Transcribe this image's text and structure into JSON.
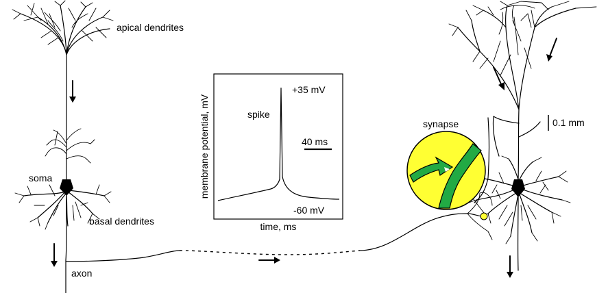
{
  "labels": {
    "apical_dendrites": "apical dendrites",
    "soma": "soma",
    "basal_dendrites": "basal dendrites",
    "axon": "axon",
    "synapse": "synapse",
    "scale": "0.1 mm"
  },
  "inset": {
    "ylabel": "membrane potential, mV",
    "xlabel": "time, ms",
    "spike_label": "spike",
    "peak_label": "+35 mV",
    "rest_label": "-60 mV",
    "time_scale_label": "40 ms"
  },
  "colors": {
    "synapse_fill": "#ffff33",
    "synapse_process": "#22aa44",
    "ink": "#000000"
  }
}
